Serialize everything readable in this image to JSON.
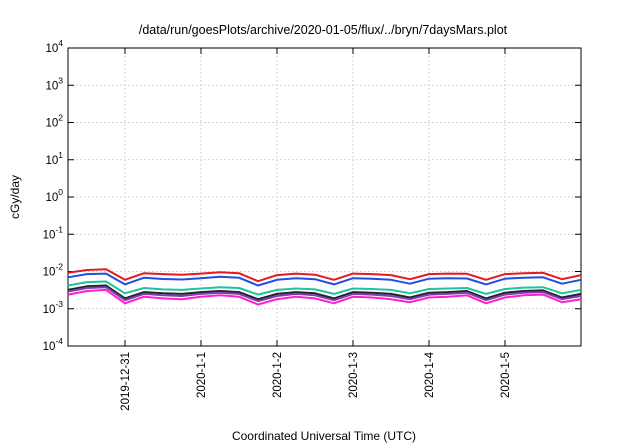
{
  "chart_data": {
    "type": "line",
    "title": "/data/run/goesPlots/archive/2020-01-05/flux/../bryn/7daysMars.plot",
    "xlabel": "Coordinated Universal Time (UTC)",
    "ylabel": "cGy/day",
    "yscale": "log",
    "ylim": [
      0.0001,
      10000
    ],
    "xlim": [
      "2019-12-30T06:00",
      "2020-01-06T00:00"
    ],
    "grid": true,
    "y_ticks": [
      {
        "base": "10",
        "exp": "-4"
      },
      {
        "base": "10",
        "exp": "-3"
      },
      {
        "base": "10",
        "exp": "-2"
      },
      {
        "base": "10",
        "exp": "-1"
      },
      {
        "base": "10",
        "exp": "0"
      },
      {
        "base": "10",
        "exp": "1"
      },
      {
        "base": "10",
        "exp": "2"
      },
      {
        "base": "10",
        "exp": "3"
      },
      {
        "base": "10",
        "exp": "4"
      }
    ],
    "x_ticks": [
      "2019-12-31",
      "2020-1-1",
      "2020-1-2",
      "2020-1-3",
      "2020-1-4",
      "2020-1-5"
    ],
    "x_tick_dates": [
      "2019-12-31T00:00",
      "2020-01-01T00:00",
      "2020-01-02T00:00",
      "2020-01-03T00:00",
      "2020-01-04T00:00",
      "2020-01-05T00:00"
    ],
    "x": [
      "2019-12-30T06:00",
      "2019-12-30T12:00",
      "2019-12-30T18:00",
      "2019-12-31T00:00",
      "2019-12-31T06:00",
      "2019-12-31T12:00",
      "2019-12-31T18:00",
      "2020-01-01T00:00",
      "2020-01-01T06:00",
      "2020-01-01T12:00",
      "2020-01-01T18:00",
      "2020-01-02T00:00",
      "2020-01-02T06:00",
      "2020-01-02T12:00",
      "2020-01-02T18:00",
      "2020-01-03T00:00",
      "2020-01-03T06:00",
      "2020-01-03T12:00",
      "2020-01-03T18:00",
      "2020-01-04T00:00",
      "2020-01-04T06:00",
      "2020-01-04T12:00",
      "2020-01-04T18:00",
      "2020-01-05T00:00",
      "2020-01-05T06:00",
      "2020-01-05T12:00",
      "2020-01-05T18:00",
      "2020-01-06T00:00"
    ],
    "series": [
      {
        "color": "#e41a1c",
        "values": [
          0.0092,
          0.011,
          0.0115,
          0.006,
          0.009,
          0.0085,
          0.0082,
          0.0088,
          0.0095,
          0.009,
          0.0055,
          0.008,
          0.0088,
          0.0082,
          0.006,
          0.0088,
          0.0085,
          0.008,
          0.0062,
          0.0085,
          0.0088,
          0.0087,
          0.006,
          0.0085,
          0.009,
          0.0092,
          0.0062,
          0.008
        ]
      },
      {
        "color": "#1f4fe0",
        "values": [
          0.007,
          0.0085,
          0.0088,
          0.0045,
          0.0068,
          0.0063,
          0.0061,
          0.0066,
          0.0072,
          0.0068,
          0.0042,
          0.006,
          0.0066,
          0.0062,
          0.0045,
          0.0066,
          0.0064,
          0.006,
          0.0047,
          0.0064,
          0.0066,
          0.0065,
          0.0045,
          0.0064,
          0.0068,
          0.007,
          0.0047,
          0.006
        ]
      },
      {
        "color": "#1fc3a0",
        "values": [
          0.0042,
          0.0052,
          0.0054,
          0.0026,
          0.0036,
          0.0033,
          0.0032,
          0.0035,
          0.0038,
          0.0036,
          0.0024,
          0.0032,
          0.0035,
          0.0033,
          0.0025,
          0.0035,
          0.0034,
          0.0032,
          0.0026,
          0.0034,
          0.0035,
          0.0036,
          0.0025,
          0.0034,
          0.0037,
          0.0038,
          0.0026,
          0.0032
        ]
      },
      {
        "color": "#222222",
        "values": [
          0.0032,
          0.004,
          0.0042,
          0.0019,
          0.0028,
          0.0026,
          0.0025,
          0.0028,
          0.003,
          0.0028,
          0.0018,
          0.0025,
          0.0028,
          0.0026,
          0.0019,
          0.0028,
          0.0027,
          0.0025,
          0.002,
          0.0027,
          0.0028,
          0.003,
          0.0019,
          0.0027,
          0.003,
          0.0031,
          0.002,
          0.0025
        ]
      },
      {
        "color": "#7b3fb0",
        "values": [
          0.0029,
          0.0036,
          0.0038,
          0.0017,
          0.0025,
          0.0023,
          0.0022,
          0.0025,
          0.0027,
          0.0025,
          0.0016,
          0.0022,
          0.0025,
          0.0023,
          0.0017,
          0.0025,
          0.0024,
          0.0022,
          0.0018,
          0.0024,
          0.0025,
          0.0027,
          0.0017,
          0.0024,
          0.0027,
          0.0028,
          0.0018,
          0.0022
        ]
      },
      {
        "color": "#ff1fcf",
        "values": [
          0.0024,
          0.003,
          0.0032,
          0.0014,
          0.0021,
          0.0019,
          0.0018,
          0.0021,
          0.0023,
          0.0021,
          0.0013,
          0.0018,
          0.0021,
          0.0019,
          0.0014,
          0.0021,
          0.002,
          0.0018,
          0.0015,
          0.002,
          0.0021,
          0.0023,
          0.0014,
          0.002,
          0.0023,
          0.0024,
          0.0015,
          0.0018
        ]
      }
    ]
  }
}
